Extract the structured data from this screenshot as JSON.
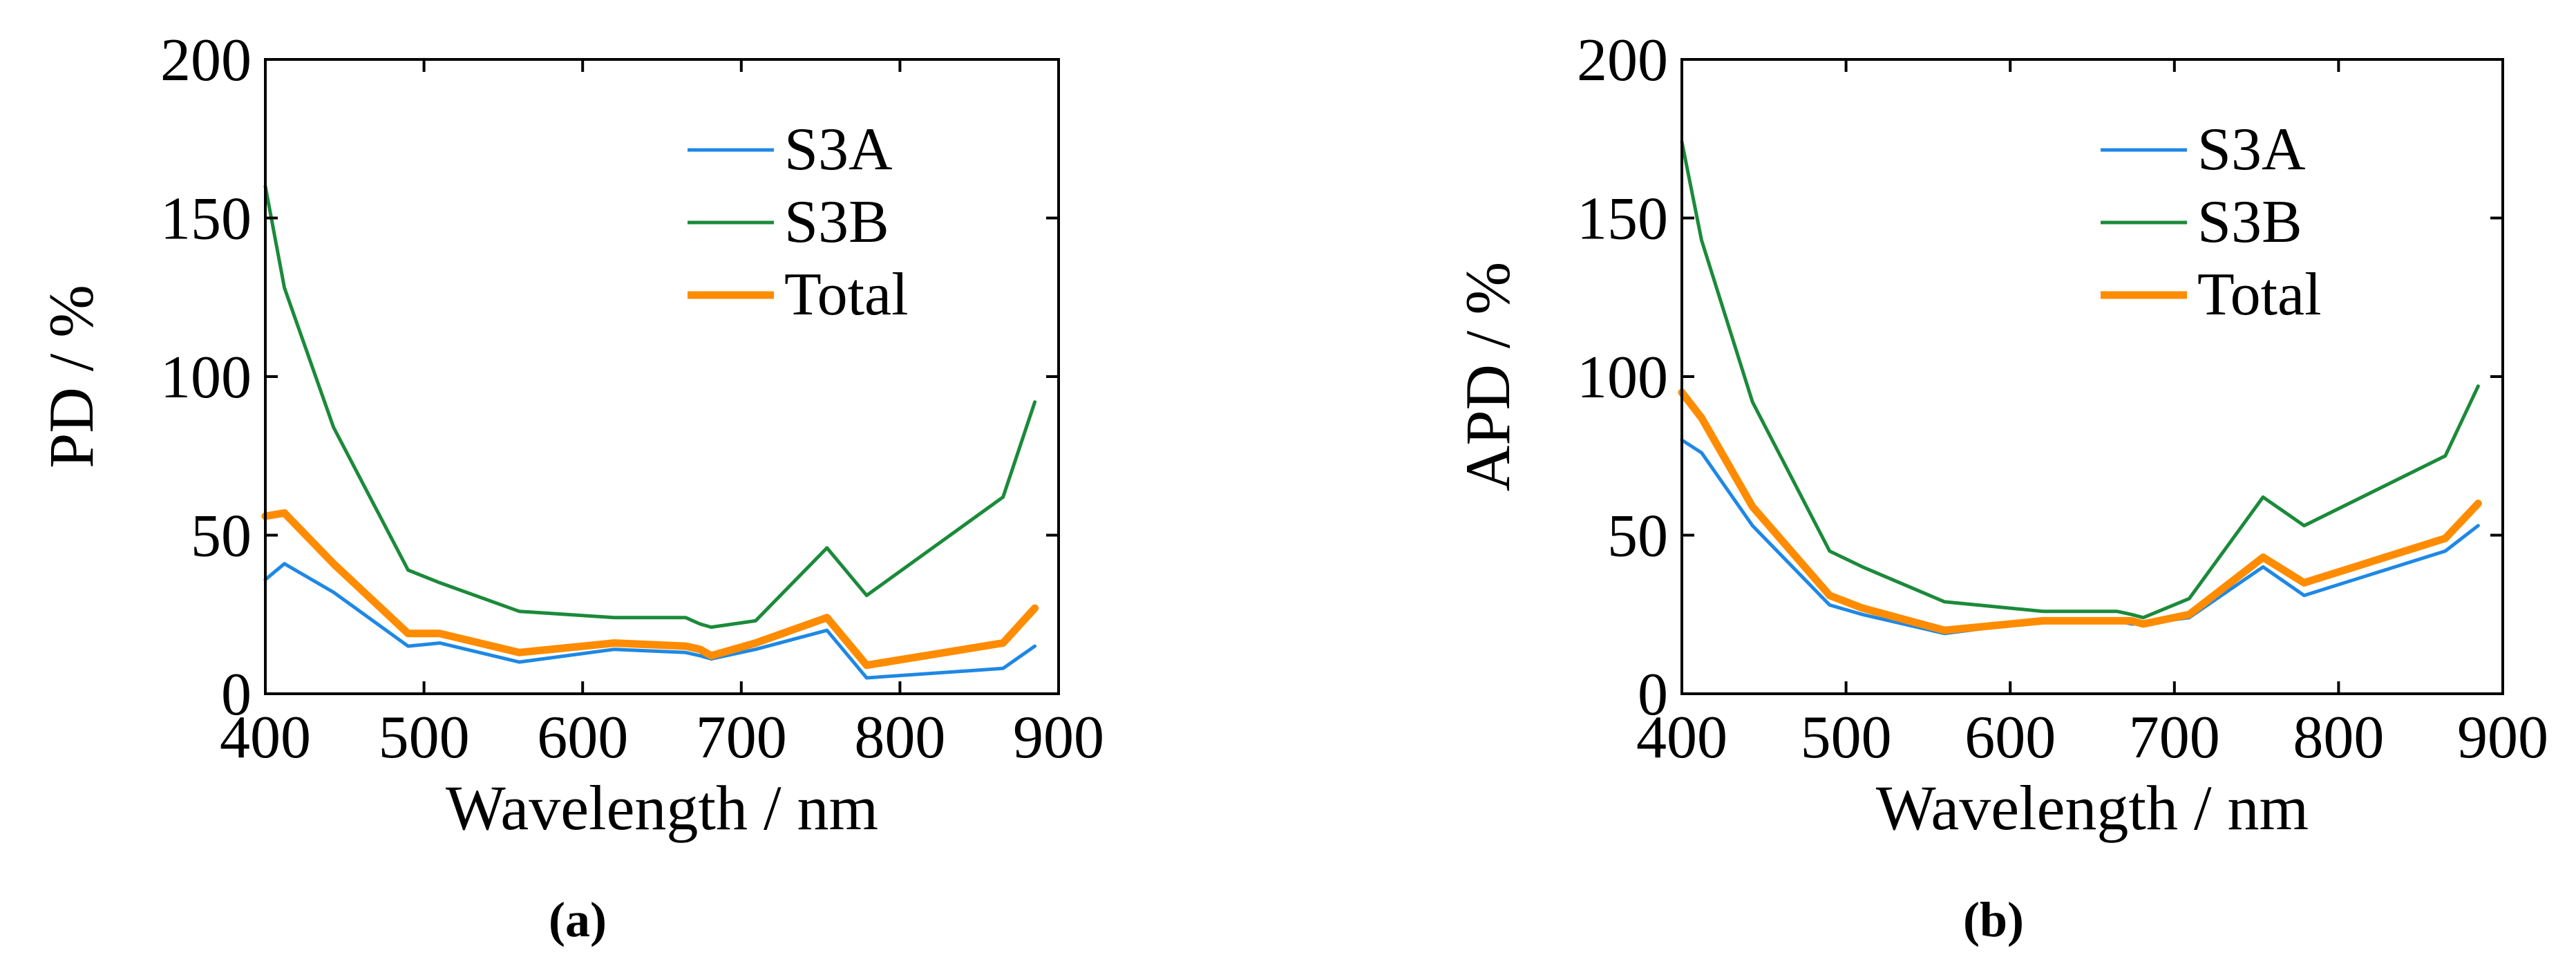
{
  "chart_data": [
    {
      "type": "line",
      "panel": "a",
      "xlabel": "Wavelength / nm",
      "ylabel": "PD / %",
      "xlim": [
        400,
        900
      ],
      "ylim": [
        0,
        200
      ],
      "xticks": [
        400,
        500,
        600,
        700,
        800,
        900
      ],
      "yticks": [
        0,
        50,
        100,
        150,
        200
      ],
      "legend_position": "top-right",
      "series": [
        {
          "name": "S3A",
          "color": "#1E88E5",
          "x": [
            400,
            412,
            443,
            490,
            510,
            560,
            620,
            665,
            674,
            681,
            709,
            754,
            779,
            865,
            885
          ],
          "y": [
            36,
            41,
            32,
            15,
            16,
            10,
            14,
            13,
            12,
            11,
            14,
            20,
            5,
            8,
            15
          ]
        },
        {
          "name": "S3B",
          "color": "#1B8A3A",
          "x": [
            400,
            412,
            443,
            490,
            510,
            560,
            620,
            665,
            674,
            681,
            709,
            754,
            779,
            865,
            885
          ],
          "y": [
            160,
            128,
            84,
            39,
            35,
            26,
            24,
            24,
            22,
            21,
            23,
            46,
            31,
            62,
            92
          ]
        },
        {
          "name": "Total",
          "color": "#FF8C00",
          "x": [
            400,
            412,
            443,
            490,
            510,
            560,
            620,
            665,
            674,
            681,
            709,
            754,
            779,
            865,
            885
          ],
          "y": [
            56,
            57,
            41,
            19,
            19,
            13,
            16,
            15,
            14,
            12,
            16,
            24,
            9,
            16,
            27
          ]
        }
      ],
      "caption": "(a)"
    },
    {
      "type": "line",
      "panel": "b",
      "xlabel": "Wavelength / nm",
      "ylabel": "APD / %",
      "xlim": [
        400,
        900
      ],
      "ylim": [
        0,
        200
      ],
      "xticks": [
        400,
        500,
        600,
        700,
        800,
        900
      ],
      "yticks": [
        0,
        50,
        100,
        150,
        200
      ],
      "legend_position": "top-right",
      "series": [
        {
          "name": "S3A",
          "color": "#1E88E5",
          "x": [
            400,
            412,
            443,
            490,
            510,
            560,
            620,
            665,
            674,
            681,
            709,
            754,
            779,
            865,
            885
          ],
          "y": [
            80,
            76,
            53,
            28,
            25,
            19,
            23,
            23,
            22,
            22,
            24,
            40,
            31,
            45,
            53
          ]
        },
        {
          "name": "S3B",
          "color": "#1B8A3A",
          "x": [
            400,
            412,
            443,
            490,
            510,
            560,
            620,
            665,
            674,
            681,
            709,
            754,
            779,
            865,
            885
          ],
          "y": [
            174,
            143,
            92,
            45,
            40,
            29,
            26,
            26,
            25,
            24,
            30,
            62,
            53,
            75,
            97
          ]
        },
        {
          "name": "Total",
          "color": "#FF8C00",
          "x": [
            400,
            412,
            443,
            490,
            510,
            560,
            620,
            665,
            674,
            681,
            709,
            754,
            779,
            865,
            885
          ],
          "y": [
            95,
            87,
            59,
            31,
            27,
            20,
            23,
            23,
            23,
            22,
            25,
            43,
            35,
            49,
            60
          ]
        }
      ],
      "caption": "(b)"
    }
  ]
}
